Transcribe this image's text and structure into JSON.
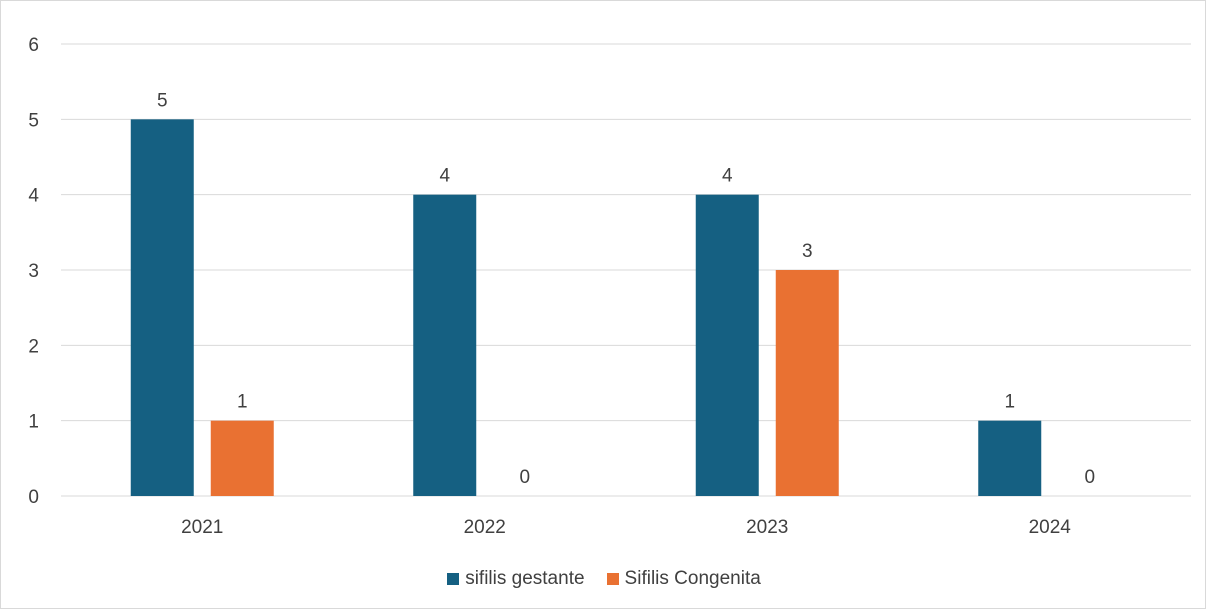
{
  "chart_data": {
    "type": "bar",
    "categories": [
      "2021",
      "2022",
      "2023",
      "2024"
    ],
    "series": [
      {
        "name": "sifilis gestante",
        "values": [
          5,
          4,
          4,
          1
        ],
        "color": "#156082"
      },
      {
        "name": "Sifilis Congenita",
        "values": [
          1,
          0,
          3,
          0
        ],
        "color": "#e97132"
      }
    ],
    "ylim": [
      0,
      6
    ],
    "yticks": [
      0,
      1,
      2,
      3,
      4,
      5,
      6
    ],
    "grid": true,
    "legend_position": "bottom",
    "data_labels": true
  }
}
